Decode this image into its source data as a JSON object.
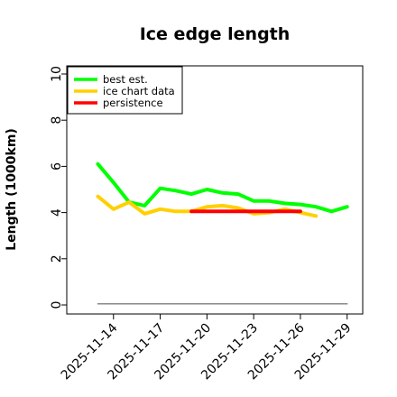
{
  "chart_data": {
    "type": "line",
    "title": "Ice edge length",
    "ylabel": "Length (1000km)",
    "xlabel": "",
    "ylim": [
      0,
      10
    ],
    "yticks": [
      0,
      2,
      4,
      6,
      8,
      10
    ],
    "xlim": [
      "2025-11-11",
      "2025-11-30"
    ],
    "xtick_labels": [
      "2025-11-14",
      "2025-11-17",
      "2025-11-20",
      "2025-11-23",
      "2025-11-26",
      "2025-11-29"
    ],
    "grid": false,
    "legend_position": "top-left",
    "series": [
      {
        "name": "best est.",
        "color": "#00ff00",
        "x": [
          "2025-11-13",
          "2025-11-14",
          "2025-11-15",
          "2025-11-16",
          "2025-11-17",
          "2025-11-18",
          "2025-11-19",
          "2025-11-20",
          "2025-11-21",
          "2025-11-22",
          "2025-11-23",
          "2025-11-24",
          "2025-11-25",
          "2025-11-26",
          "2025-11-27",
          "2025-11-28",
          "2025-11-29"
        ],
        "values": [
          6.1,
          5.3,
          4.45,
          4.3,
          5.05,
          4.95,
          4.8,
          5.0,
          4.85,
          4.8,
          4.5,
          4.5,
          4.4,
          4.35,
          4.25,
          4.05,
          4.25
        ]
      },
      {
        "name": "ice chart data",
        "color": "#ffd000",
        "x": [
          "2025-11-13",
          "2025-11-14",
          "2025-11-15",
          "2025-11-16",
          "2025-11-17",
          "2025-11-18",
          "2025-11-19",
          "2025-11-20",
          "2025-11-21",
          "2025-11-22",
          "2025-11-23",
          "2025-11-24",
          "2025-11-25",
          "2025-11-26",
          "2025-11-27"
        ],
        "values": [
          4.7,
          4.15,
          4.45,
          3.95,
          4.15,
          4.05,
          4.05,
          4.25,
          4.3,
          4.2,
          3.95,
          4.0,
          4.15,
          4.0,
          3.85
        ]
      },
      {
        "name": "persistence",
        "color": "#ff0000",
        "x": [
          "2025-11-19",
          "2025-11-20",
          "2025-11-21",
          "2025-11-22",
          "2025-11-23",
          "2025-11-24",
          "2025-11-25",
          "2025-11-26"
        ],
        "values": [
          4.05,
          4.05,
          4.05,
          4.05,
          4.05,
          4.05,
          4.05,
          4.05
        ]
      },
      {
        "name": "",
        "color": "#888888",
        "x": [
          "2025-11-13",
          "2025-11-29"
        ],
        "values": [
          0.05,
          0.05
        ]
      }
    ]
  }
}
